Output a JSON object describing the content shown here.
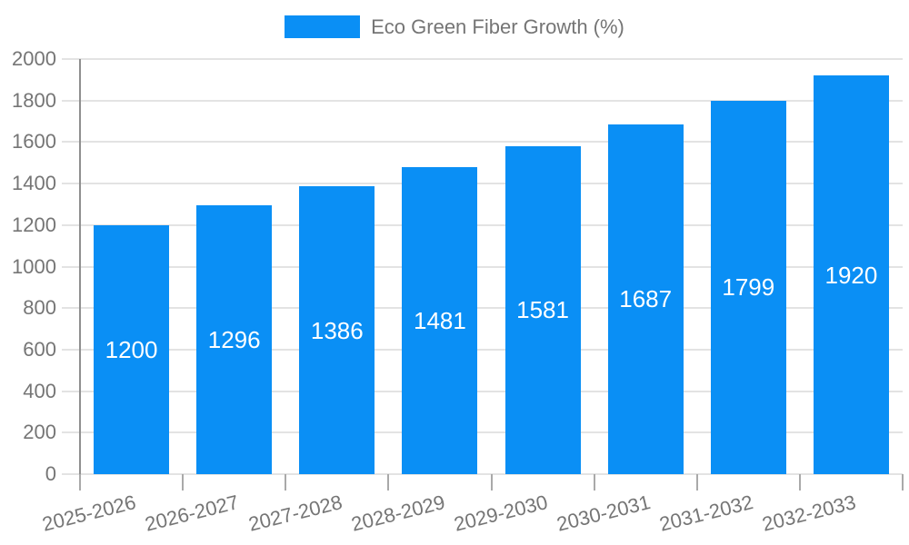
{
  "chart_data": {
    "type": "bar",
    "title": "Eco Green Fiber Growth (%)",
    "legend": {
      "position": "top",
      "label": "Eco Green Fiber Growth (%)"
    },
    "categories": [
      "2025-2026",
      "2026-2027",
      "2027-2028",
      "2028-2029",
      "2029-2030",
      "2030-2031",
      "2031-2032",
      "2032-2033"
    ],
    "series": [
      {
        "name": "Eco Green Fiber Growth (%)",
        "values": [
          1200,
          1296,
          1386,
          1481,
          1581,
          1687,
          1799,
          1920
        ]
      }
    ],
    "value_labels": [
      "1200",
      "1296",
      "1386",
      "1481",
      "1581",
      "1687",
      "1799",
      "1920"
    ],
    "xlabel": "",
    "ylabel": "",
    "ylim": [
      0,
      2000
    ],
    "ytick_interval": 200,
    "ytick_labels": [
      "0",
      "200",
      "400",
      "600",
      "800",
      "1000",
      "1200",
      "1400",
      "1600",
      "1800",
      "2000"
    ],
    "grid": true,
    "value_labels_inside_bars": true,
    "colors": {
      "bar": "#0a8ff5",
      "value_label": "#ffffff",
      "axis_text": "#757575",
      "gridline": "#e3e3e3",
      "axis_line": "#8f8f8f",
      "tick": "#a9a9a9",
      "background": "#ffffff"
    }
  }
}
